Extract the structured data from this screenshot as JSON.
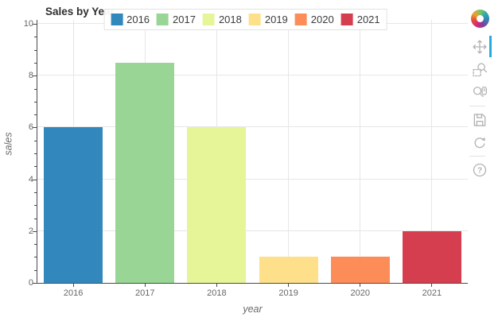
{
  "chart_data": {
    "type": "bar",
    "title": "Sales by Year",
    "categories": [
      "2016",
      "2017",
      "2018",
      "2019",
      "2020",
      "2021"
    ],
    "values": [
      6,
      8.5,
      6,
      1,
      1,
      2
    ],
    "colors": [
      "#3288bd",
      "#99d594",
      "#e6f598",
      "#fee08b",
      "#fc8d59",
      "#d53e4f"
    ],
    "xlabel": "year",
    "ylabel": "sales",
    "ylim": [
      0,
      10
    ],
    "yticks": [
      0,
      2,
      4,
      6,
      8,
      10
    ],
    "minor_tick_step": 0.5,
    "grid": true,
    "legend": {
      "position": "top-center",
      "labels": [
        "2016",
        "2017",
        "2018",
        "2019",
        "2020",
        "2021"
      ]
    }
  },
  "toolbar": {
    "active_color": "#26aae1",
    "icon_color": "#b3b3b3",
    "logo": "bokeh-logo",
    "tools": [
      {
        "id": "pan",
        "icon": "pan-icon",
        "active": true,
        "separator_after": false
      },
      {
        "id": "box-zoom",
        "icon": "box-zoom-icon",
        "active": false,
        "separator_after": false
      },
      {
        "id": "wheel-zoom",
        "icon": "wheel-zoom-icon",
        "active": false,
        "separator_after": true
      },
      {
        "id": "save",
        "icon": "save-icon",
        "active": false,
        "separator_after": false
      },
      {
        "id": "reset",
        "icon": "reset-icon",
        "active": false,
        "separator_after": true
      },
      {
        "id": "help",
        "icon": "help-icon",
        "active": false,
        "separator_after": false
      }
    ]
  }
}
